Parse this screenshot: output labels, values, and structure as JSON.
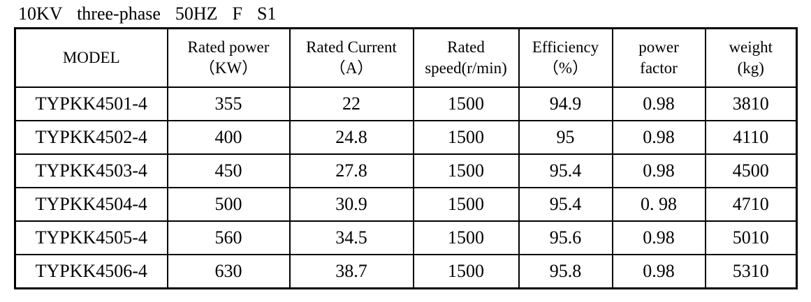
{
  "caption": "10KV  three-phase  50HZ  F  S1",
  "table": {
    "headers": [
      {
        "line1": "MODEL",
        "line2": ""
      },
      {
        "line1": "Rated power",
        "line2": "（KW）"
      },
      {
        "line1": "Rated Current",
        "line2": "（A）"
      },
      {
        "line1": "Rated",
        "line2": "speed(r/min)"
      },
      {
        "line1": "Efficiency",
        "line2": "（%）"
      },
      {
        "line1": "power",
        "line2": "factor"
      },
      {
        "line1": "weight",
        "line2": "(kg)"
      }
    ],
    "rows": [
      [
        "TYPKK4501-4",
        "355",
        "22",
        "1500",
        "94.9",
        "0.98",
        "3810"
      ],
      [
        "TYPKK4502-4",
        "400",
        "24.8",
        "1500",
        "95",
        "0.98",
        "4110"
      ],
      [
        "TYPKK4503-4",
        "450",
        "27.8",
        "1500",
        "95.4",
        "0.98",
        "4500"
      ],
      [
        "TYPKK4504-4",
        "500",
        "30.9",
        "1500",
        "95.4",
        "0. 98",
        "4710"
      ],
      [
        "TYPKK4505-4",
        "560",
        "34.5",
        "1500",
        "95.6",
        "0.98",
        "5010"
      ],
      [
        "TYPKK4506-4",
        "630",
        "38.7",
        "1500",
        "95.8",
        "0.98",
        "5310"
      ]
    ]
  }
}
